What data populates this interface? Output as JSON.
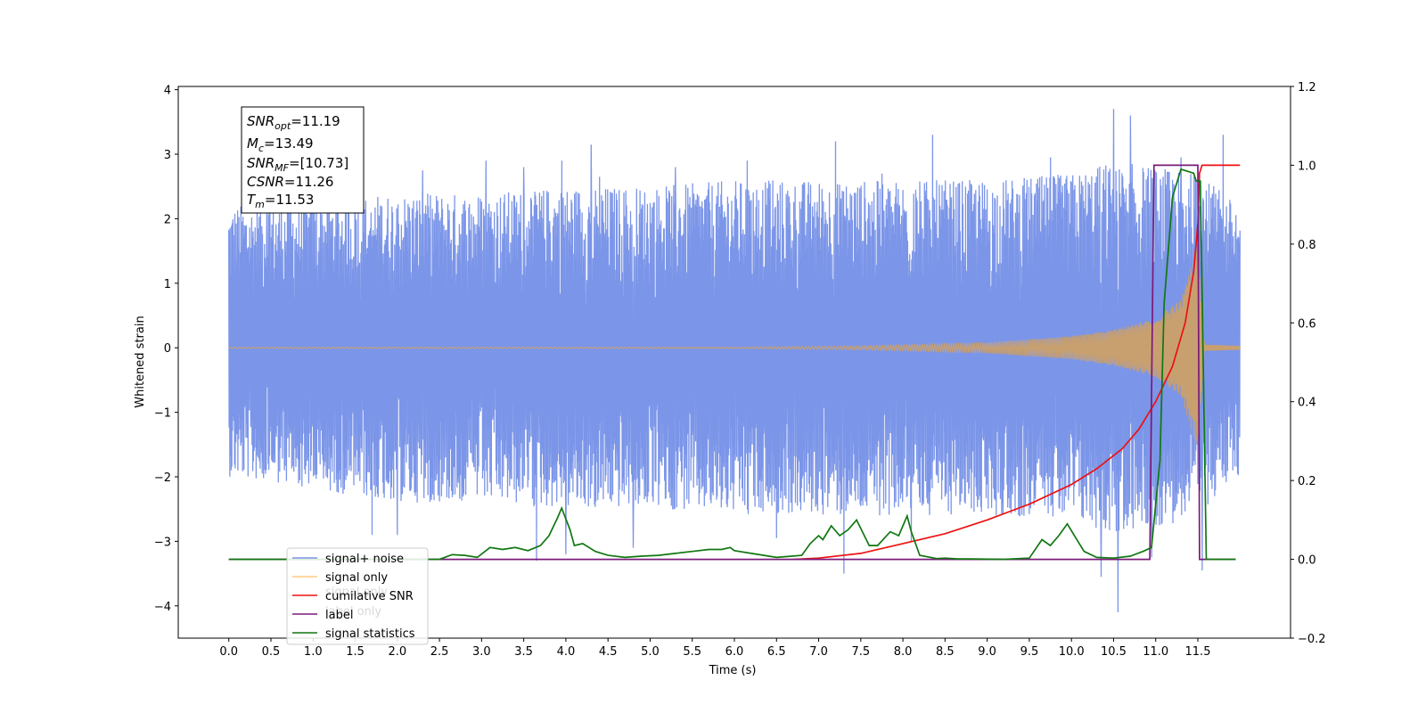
{
  "chart_data": {
    "type": "line",
    "xlabel": "Time (s)",
    "ylabel": "Whitened strain",
    "xlim": [
      -0.6,
      12.6
    ],
    "ylim": [
      -4.5,
      4.05
    ],
    "y2lim": [
      -0.2,
      1.2
    ],
    "x_ticks": [
      "0.0",
      "0.5",
      "1.0",
      "1.5",
      "2.0",
      "2.5",
      "3.0",
      "3.5",
      "4.0",
      "4.5",
      "5.0",
      "5.5",
      "6.0",
      "6.5",
      "7.0",
      "7.5",
      "8.0",
      "8.5",
      "9.0",
      "9.5",
      "10.0",
      "10.5",
      "11.0",
      "11.5"
    ],
    "y_ticks": [
      "−4",
      "−3",
      "−2",
      "−1",
      "0",
      "1",
      "2",
      "3",
      "4"
    ],
    "y2_ticks": [
      "−0.2",
      "0.0",
      "0.2",
      "0.4",
      "0.6",
      "0.8",
      "1.0",
      "1.2"
    ],
    "stats": [
      {
        "base": "SNR",
        "sub": "opt",
        "value": "=11.19"
      },
      {
        "base": "M",
        "sub": "c",
        "value": "=13.49"
      },
      {
        "base": "SNR",
        "sub": "MF",
        "value": "=[10.73]"
      },
      {
        "base": "CSNR",
        "sub": "",
        "value": "=11.26"
      },
      {
        "base": "T",
        "sub": "m",
        "value": "=11.53"
      }
    ],
    "legend": [
      {
        "label": "signal+ noise",
        "color": "#7b95e8"
      },
      {
        "label": "signal only",
        "color": "#ffcc80"
      },
      {
        "label": "cumilative SNR",
        "color": "#ee1111"
      },
      {
        "label": "label",
        "color": "#7a1a7a"
      },
      {
        "label": "signal statistics",
        "color": "#117711"
      }
    ],
    "ghost_legend_text": [
      "signal only",
      "label only"
    ],
    "series": [
      {
        "name": "signal+ noise",
        "axis": "left",
        "color": "#7b95e8",
        "x_range": [
          0.0,
          12.0
        ],
        "envelope_upper": [
          [
            0,
            2.2
          ],
          [
            1,
            2.3
          ],
          [
            2,
            2.4
          ],
          [
            3,
            2.4
          ],
          [
            4,
            2.5
          ],
          [
            5,
            2.5
          ],
          [
            6,
            2.6
          ],
          [
            7,
            2.6
          ],
          [
            8,
            2.6
          ],
          [
            9,
            2.6
          ],
          [
            10,
            2.7
          ],
          [
            10.5,
            2.9
          ],
          [
            11,
            2.8
          ],
          [
            11.5,
            2.7
          ],
          [
            12,
            2.2
          ]
        ],
        "envelope_lower": [
          [
            0,
            -2.0
          ],
          [
            1,
            -2.2
          ],
          [
            2,
            -2.4
          ],
          [
            3,
            -2.4
          ],
          [
            4,
            -2.5
          ],
          [
            5,
            -2.5
          ],
          [
            6,
            -2.6
          ],
          [
            7,
            -2.6
          ],
          [
            8,
            -2.6
          ],
          [
            9,
            -2.6
          ],
          [
            10,
            -2.7
          ],
          [
            10.5,
            -2.9
          ],
          [
            11,
            -2.8
          ],
          [
            11.5,
            -2.6
          ],
          [
            12,
            -2.0
          ]
        ],
        "peaks": [
          [
            0.45,
            2.35
          ],
          [
            1.5,
            2.55
          ],
          [
            2.3,
            2.75
          ],
          [
            3.05,
            2.9
          ],
          [
            3.5,
            2.8
          ],
          [
            3.95,
            2.9
          ],
          [
            4.3,
            3.15
          ],
          [
            4.4,
            2.65
          ],
          [
            5.3,
            2.8
          ],
          [
            6.15,
            2.9
          ],
          [
            7.2,
            3.2
          ],
          [
            7.75,
            2.7
          ],
          [
            8.35,
            3.3
          ],
          [
            9.75,
            2.95
          ],
          [
            10.5,
            3.7
          ],
          [
            10.7,
            3.6
          ],
          [
            11.3,
            2.95
          ],
          [
            11.8,
            3.3
          ],
          [
            1.7,
            -2.9
          ],
          [
            2.0,
            -2.9
          ],
          [
            3.65,
            -3.3
          ],
          [
            4.0,
            -3.2
          ],
          [
            4.8,
            -3.1
          ],
          [
            6.5,
            -2.95
          ],
          [
            7.3,
            -3.5
          ],
          [
            8.1,
            -3.0
          ],
          [
            10.35,
            -3.55
          ],
          [
            10.55,
            -4.1
          ],
          [
            10.95,
            -3.25
          ],
          [
            11.55,
            -3.45
          ]
        ]
      },
      {
        "name": "signal only",
        "axis": "left",
        "color": "#c8a070",
        "amplitude": [
          [
            0,
            0.01
          ],
          [
            6,
            0.01
          ],
          [
            7.5,
            0.03
          ],
          [
            9,
            0.08
          ],
          [
            10,
            0.18
          ],
          [
            10.5,
            0.28
          ],
          [
            11,
            0.45
          ],
          [
            11.3,
            0.75
          ],
          [
            11.5,
            1.6
          ],
          [
            11.58,
            0.05
          ],
          [
            12,
            0.03
          ]
        ]
      },
      {
        "name": "cumilative SNR",
        "axis": "right",
        "color": "#ee1111",
        "x": [
          6.7,
          7.0,
          7.5,
          8.0,
          8.5,
          9.0,
          9.5,
          10.0,
          10.3,
          10.6,
          10.8,
          11.0,
          11.2,
          11.35,
          11.45,
          11.5,
          11.52,
          11.55,
          11.6,
          11.7,
          12.0
        ],
        "values": [
          0.0,
          0.003,
          0.015,
          0.04,
          0.065,
          0.1,
          0.14,
          0.19,
          0.23,
          0.28,
          0.33,
          0.4,
          0.49,
          0.6,
          0.73,
          0.85,
          0.98,
          1.0,
          1.0,
          1.0,
          1.0
        ]
      },
      {
        "name": "label",
        "axis": "right",
        "color": "#7a1a7a",
        "x": [
          0.0,
          10.93,
          10.98,
          11.5,
          11.52,
          11.62,
          11.95
        ],
        "values": [
          0.0,
          0.0,
          1.0,
          1.0,
          0.0,
          0.0,
          0.0
        ]
      },
      {
        "name": "signal statistics",
        "axis": "right",
        "color": "#117711",
        "x": [
          0.0,
          2.0,
          2.5,
          2.65,
          2.8,
          2.95,
          3.1,
          3.25,
          3.4,
          3.55,
          3.7,
          3.8,
          3.9,
          3.95,
          4.05,
          4.1,
          4.2,
          4.35,
          4.5,
          4.7,
          4.9,
          5.1,
          5.3,
          5.5,
          5.7,
          5.85,
          5.95,
          6.0,
          6.2,
          6.5,
          6.8,
          6.9,
          7.0,
          7.05,
          7.15,
          7.25,
          7.35,
          7.45,
          7.6,
          7.7,
          7.85,
          7.95,
          8.05,
          8.1,
          8.2,
          8.4,
          8.5,
          8.65,
          8.8,
          9.2,
          9.5,
          9.65,
          9.75,
          9.85,
          9.95,
          10.05,
          10.15,
          10.3,
          10.5,
          10.7,
          10.85,
          10.95,
          11.05,
          11.1,
          11.2,
          11.3,
          11.45,
          11.48,
          11.53,
          11.6,
          11.95
        ],
        "values": [
          0.0,
          0.0,
          0.0,
          0.012,
          0.01,
          0.005,
          0.03,
          0.025,
          0.03,
          0.022,
          0.035,
          0.06,
          0.105,
          0.13,
          0.075,
          0.035,
          0.04,
          0.02,
          0.01,
          0.005,
          0.008,
          0.01,
          0.015,
          0.02,
          0.025,
          0.025,
          0.03,
          0.022,
          0.015,
          0.005,
          0.01,
          0.04,
          0.06,
          0.05,
          0.085,
          0.06,
          0.075,
          0.1,
          0.035,
          0.035,
          0.07,
          0.06,
          0.11,
          0.07,
          0.01,
          0.002,
          0.003,
          0.001,
          0.001,
          0.0,
          0.003,
          0.05,
          0.035,
          0.06,
          0.09,
          0.055,
          0.02,
          0.005,
          0.003,
          0.008,
          0.02,
          0.03,
          0.25,
          0.65,
          0.92,
          0.99,
          0.98,
          0.96,
          0.96,
          0.0,
          0.0
        ]
      }
    ]
  }
}
